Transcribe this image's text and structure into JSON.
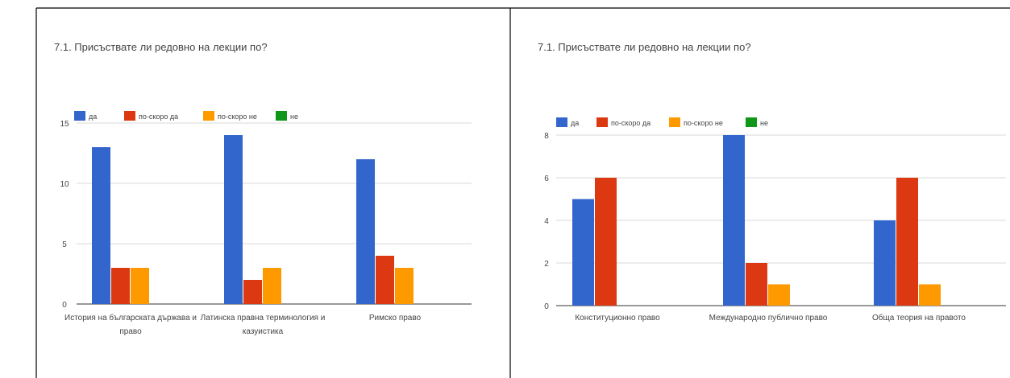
{
  "colors": {
    "series": [
      "#3366cc",
      "#dc3912",
      "#ff9900",
      "#109618"
    ],
    "grid": "#d9d9d9",
    "axis": "#333333",
    "text": "#444444",
    "border": "#000000"
  },
  "chart_data": [
    {
      "type": "bar",
      "title": "7.1. Присъствате ли редовно на лекции по?",
      "categories": [
        "История на българската държава и право",
        "Латинска правна терминология и казуистика",
        "Римско право"
      ],
      "category_lines": [
        [
          "История на българската държава и",
          "право"
        ],
        [
          "Латинска правна терминология и",
          "казуистика"
        ],
        [
          "Римско право"
        ]
      ],
      "series": [
        {
          "name": "да",
          "values": [
            13,
            14,
            12
          ]
        },
        {
          "name": "по-скоро да",
          "values": [
            3,
            2,
            4
          ]
        },
        {
          "name": "по-скоро не",
          "values": [
            3,
            3,
            3
          ]
        },
        {
          "name": "не",
          "values": [
            0,
            0,
            0
          ]
        }
      ],
      "yticks": [
        0,
        5,
        10,
        15
      ],
      "ylim": [
        0,
        15
      ],
      "grid": true,
      "legend": "top-left"
    },
    {
      "type": "bar",
      "title": "7.1. Присъствате ли редовно на лекции по?",
      "categories": [
        "Конституционно право",
        "Международно публично право",
        "Обща теория на правото"
      ],
      "category_lines": [
        [
          "Конституционно право"
        ],
        [
          "Международно публично право"
        ],
        [
          "Обща теория на правото"
        ]
      ],
      "series": [
        {
          "name": "да",
          "values": [
            5,
            8,
            4
          ]
        },
        {
          "name": "по-скоро да",
          "values": [
            6,
            2,
            6
          ]
        },
        {
          "name": "по-скоро не",
          "values": [
            0,
            1,
            1
          ]
        },
        {
          "name": "не",
          "values": [
            0,
            0,
            0
          ]
        }
      ],
      "yticks": [
        0,
        2,
        4,
        6,
        8
      ],
      "ylim": [
        0,
        8
      ],
      "grid": true,
      "legend": "top-left"
    }
  ]
}
